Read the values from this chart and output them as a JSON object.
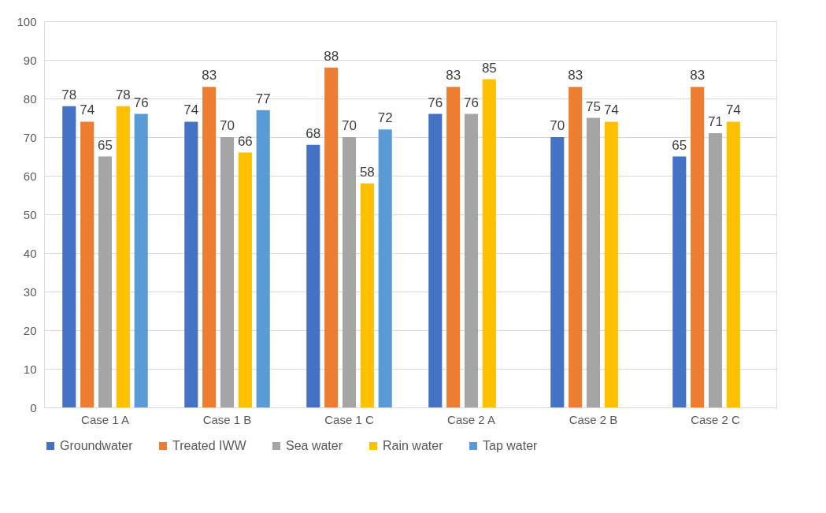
{
  "chart_data": {
    "type": "bar",
    "categories": [
      "Case 1 A",
      "Case 1 B",
      "Case 1 C",
      "Case 2 A",
      "Case 2 B",
      "Case 2 C"
    ],
    "series": [
      {
        "name": "Groundwater",
        "color": "#4472c4",
        "values": [
          78,
          74,
          68,
          76,
          70,
          65
        ]
      },
      {
        "name": "Treated IWW",
        "color": "#ed7d31",
        "values": [
          74,
          83,
          88,
          83,
          83,
          83
        ]
      },
      {
        "name": "Sea water",
        "color": "#a5a5a5",
        "values": [
          65,
          70,
          70,
          76,
          75,
          71
        ]
      },
      {
        "name": "Rain water",
        "color": "#ffc000",
        "values": [
          78,
          66,
          58,
          85,
          74,
          74
        ]
      },
      {
        "name": "Tap water",
        "color": "#5b9bd5",
        "values": [
          76,
          77,
          72,
          null,
          null,
          null
        ]
      }
    ],
    "ylim": [
      0,
      100
    ],
    "yticks": [
      0,
      10,
      20,
      30,
      40,
      50,
      60,
      70,
      80,
      90,
      100
    ],
    "grid": "y",
    "legend": "bottom",
    "data_labels": true
  }
}
